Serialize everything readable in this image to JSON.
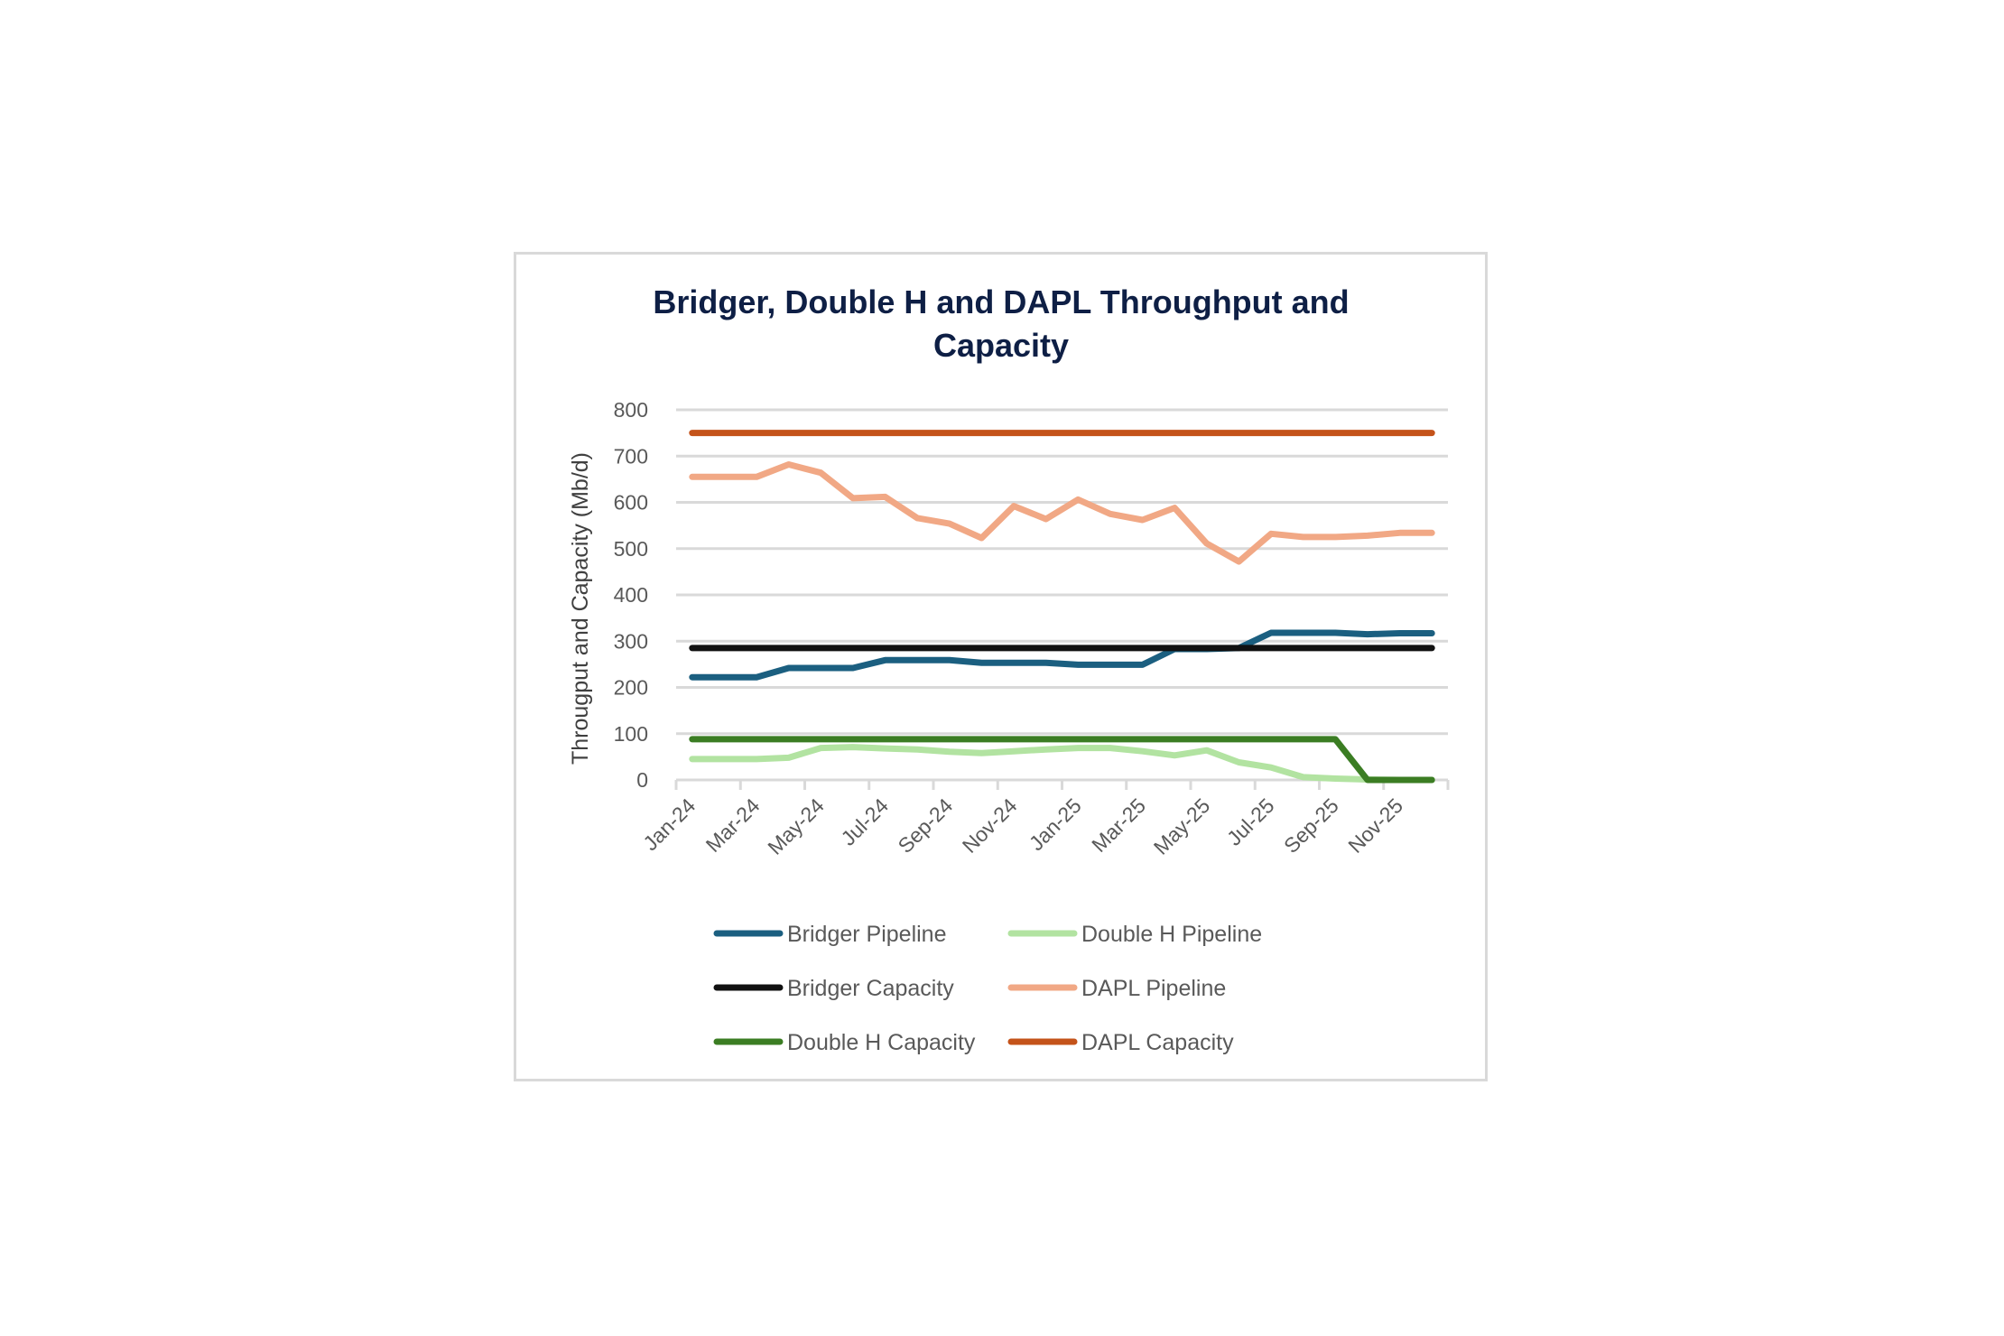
{
  "chart_data": {
    "type": "line",
    "title_lines": [
      "Bridger, Double H and DAPL Throughput and",
      "Capacity"
    ],
    "xlabel": "",
    "ylabel": "Througput and Capacity (Mb/d)",
    "ylim": [
      0,
      800
    ],
    "yticks": [
      "0",
      "100",
      "200",
      "300",
      "400",
      "500",
      "600",
      "700",
      "800"
    ],
    "categories": [
      "Jan-24",
      "Feb-24",
      "Mar-24",
      "Apr-24",
      "May-24",
      "Jun-24",
      "Jul-24",
      "Aug-24",
      "Sep-24",
      "Oct-24",
      "Nov-24",
      "Dec-24",
      "Jan-25",
      "Feb-25",
      "Mar-25",
      "Apr-25",
      "May-25",
      "Jun-25",
      "Jul-25",
      "Aug-25",
      "Sep-25",
      "Oct-25",
      "Nov-25",
      "Dec-25"
    ],
    "xtick_labels": [
      "Jan-24",
      "Mar-24",
      "May-24",
      "Jul-24",
      "Sep-24",
      "Nov-24",
      "Jan-25",
      "Mar-25",
      "May-25",
      "Jul-25",
      "Sep-25",
      "Nov-25"
    ],
    "grid": true,
    "legend_position": "bottom",
    "series": [
      {
        "name": "Bridger Pipeline",
        "color": "#1b5f80",
        "values": [
          222,
          222,
          222,
          242,
          242,
          242,
          259,
          259,
          259,
          253,
          253,
          253,
          249,
          249,
          249,
          283,
          283,
          285,
          318,
          318,
          318,
          315,
          317,
          317
        ]
      },
      {
        "name": "Double H Pipeline",
        "color": "#b2e3a1",
        "values": [
          45,
          45,
          45,
          48,
          69,
          71,
          68,
          66,
          61,
          58,
          62,
          66,
          69,
          69,
          62,
          53,
          64,
          38,
          27,
          6,
          3,
          1,
          0,
          0
        ]
      },
      {
        "name": "Bridger Capacity",
        "color": "#111111",
        "values": [
          285,
          285,
          285,
          285,
          285,
          285,
          285,
          285,
          285,
          285,
          285,
          285,
          285,
          285,
          285,
          285,
          285,
          285,
          285,
          285,
          285,
          285,
          285,
          285
        ]
      },
      {
        "name": "DAPL Pipeline",
        "color": "#f1a885",
        "values": [
          655,
          655,
          655,
          682,
          664,
          609,
          612,
          566,
          554,
          523,
          592,
          564,
          606,
          575,
          562,
          588,
          511,
          472,
          532,
          525,
          525,
          528,
          534,
          534
        ]
      },
      {
        "name": "Double H Capacity",
        "color": "#3b7d23",
        "values": [
          88,
          88,
          88,
          88,
          88,
          88,
          88,
          88,
          88,
          88,
          88,
          88,
          88,
          88,
          88,
          88,
          88,
          88,
          88,
          88,
          88,
          0,
          0,
          0
        ]
      },
      {
        "name": "DAPL Capacity",
        "color": "#c4531a",
        "values": [
          750,
          750,
          750,
          750,
          750,
          750,
          750,
          750,
          750,
          750,
          750,
          750,
          750,
          750,
          750,
          750,
          750,
          750,
          750,
          750,
          750,
          750,
          750,
          750
        ]
      }
    ]
  }
}
